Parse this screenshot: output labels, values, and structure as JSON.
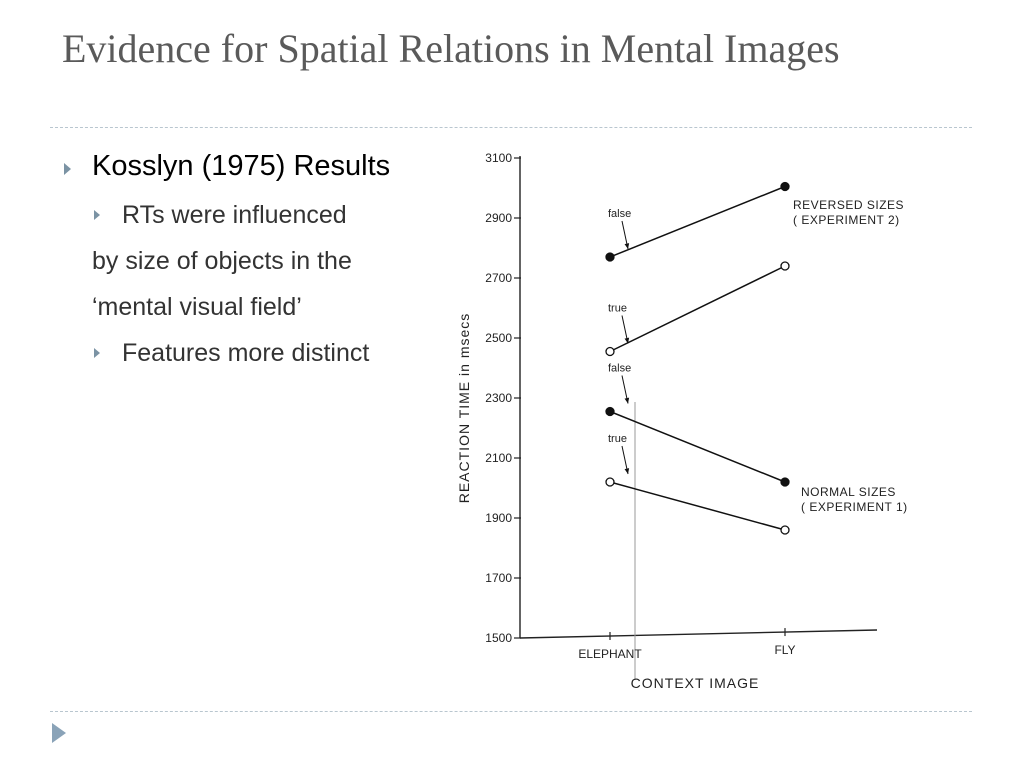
{
  "slide": {
    "title": "Evidence for Spatial Relations in Mental Images"
  },
  "bullets": {
    "level1": "Kosslyn (1975) Results",
    "sub1": "RTs were influenced",
    "cont1": "by size of objects in the",
    "cont2": "‘mental visual field’",
    "sub2": "Features more distinct"
  },
  "chart_data": {
    "type": "line",
    "categories": [
      "ELEPHANT",
      "FLY"
    ],
    "xlabel": "CONTEXT IMAGE",
    "ylabel": "REACTION TIME in msecs",
    "ylim": [
      1500,
      3100
    ],
    "yticks": [
      1500,
      1700,
      1900,
      2100,
      2300,
      2500,
      2700,
      2900,
      3100
    ],
    "series": [
      {
        "name": "false",
        "group": "reversed",
        "values": [
          2770,
          3005
        ],
        "marker": "filled"
      },
      {
        "name": "true",
        "group": "reversed",
        "values": [
          2455,
          2740
        ],
        "marker": "open"
      },
      {
        "name": "false",
        "group": "normal",
        "values": [
          2255,
          2020
        ],
        "marker": "filled"
      },
      {
        "name": "true",
        "group": "normal",
        "values": [
          2020,
          1860
        ],
        "marker": "open"
      }
    ],
    "annotations": {
      "reversed_line1": "REVERSED  SIZES",
      "reversed_line2": "( EXPERIMENT  2)",
      "normal_line1": "NORMAL SIZES",
      "normal_line2": "( EXPERIMENT  1)"
    }
  }
}
